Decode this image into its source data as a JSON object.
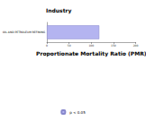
{
  "chart_data": {
    "type": "bar",
    "orientation": "horizontal",
    "title": "Industry",
    "xlabel": "Proportionate Mortality Ratio (PMR)",
    "categories": [
      "OIL AND PETROLEUM REFINING"
    ],
    "series": [
      {
        "name": "p < 0.05",
        "color": "#b4b4f0",
        "values": [
          118
        ]
      }
    ],
    "xlim": [
      0,
      200
    ],
    "xticks": [
      0,
      50,
      100,
      150,
      200
    ],
    "grid": false,
    "legend": "bottom"
  }
}
